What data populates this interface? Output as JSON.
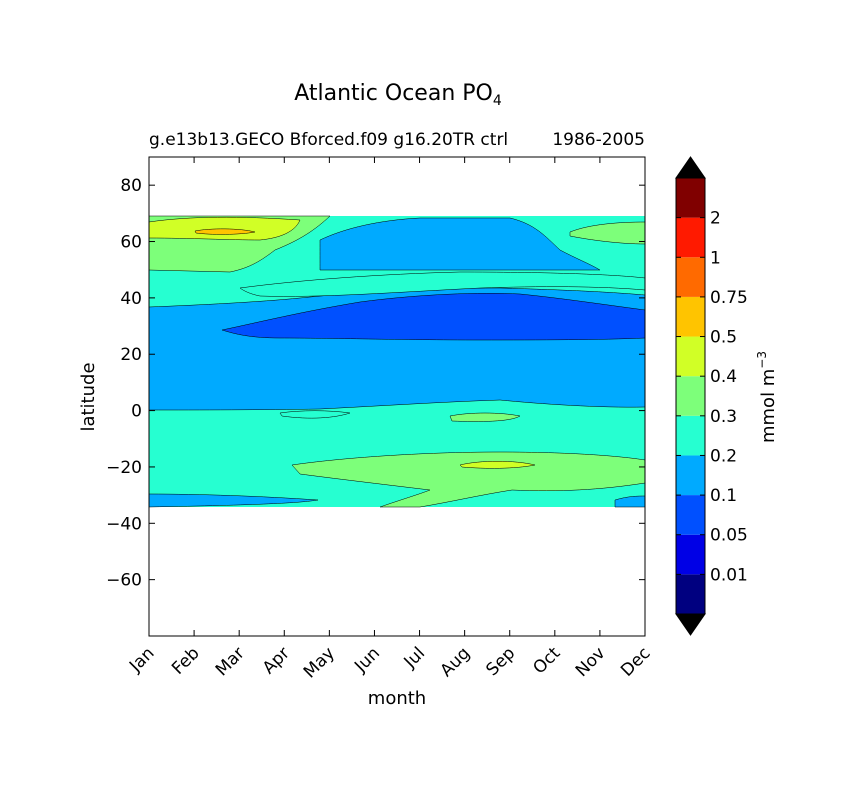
{
  "chart_data": {
    "type": "heatmap",
    "title": "Atlantic Ocean PO",
    "title_subscript": "4",
    "subtitle_left": "g.e13b13.GECO Bforced.f09 g16.20TR ctrl",
    "subtitle_right": "1986-2005",
    "xlabel": "month",
    "ylabel": "latitude",
    "x_categories": [
      "Jan",
      "Feb",
      "Mar",
      "Apr",
      "May",
      "Jun",
      "Jul",
      "Aug",
      "Sep",
      "Oct",
      "Nov",
      "Dec"
    ],
    "ylim": [
      -80,
      90
    ],
    "y_ticks": [
      80,
      60,
      40,
      20,
      0,
      -20,
      -40,
      -60
    ],
    "y_tick_labels": [
      "80",
      "60",
      "40",
      "20",
      "0",
      "−20",
      "−40",
      "−60"
    ],
    "data_lat_range": [
      -34,
      69
    ],
    "colorbar": {
      "label": "mmol m",
      "label_sup": "−3",
      "extend": "both",
      "boundaries": [
        0.01,
        0.05,
        0.1,
        0.2,
        0.3,
        0.4,
        0.5,
        0.75,
        1,
        2
      ],
      "tick_labels": [
        "0.01",
        "0.05",
        "0.1",
        "0.2",
        "0.3",
        "0.4",
        "0.5",
        "0.75",
        "1",
        "2"
      ],
      "colors": [
        "#000080",
        "#0000e6",
        "#0050ff",
        "#00aaff",
        "#26ffd1",
        "#7dff7a",
        "#d1ff26",
        "#ffc400",
        "#ff6a00",
        "#ff1a00",
        "#800000"
      ],
      "under_color": "#000000",
      "over_color": "#000000"
    },
    "series": [
      {
        "name": "contour_band",
        "level": 0.2,
        "bands": [
          {
            "x": [
              0,
              11
            ],
            "lat": [
              -34,
              -29
            ]
          },
          {
            "x": [
              0,
              11
            ],
            "lat": [
              -29,
              1.5
            ]
          },
          {
            "x": [
              0,
              11
            ],
            "lat": [
              45,
              60
            ]
          }
        ]
      },
      {
        "name": "contour_band",
        "level": 0.1,
        "bands": [
          {
            "x": [
              0,
              11
            ],
            "lat": [
              2,
              37
            ]
          },
          {
            "x": [
              0,
              11
            ],
            "lat": [
              50,
              68
            ]
          }
        ]
      },
      {
        "name": "contour_band",
        "level": 0.05,
        "bands": [
          {
            "x": [
              2,
              11
            ],
            "lat": [
              25.5,
              42
            ]
          }
        ]
      }
    ]
  }
}
